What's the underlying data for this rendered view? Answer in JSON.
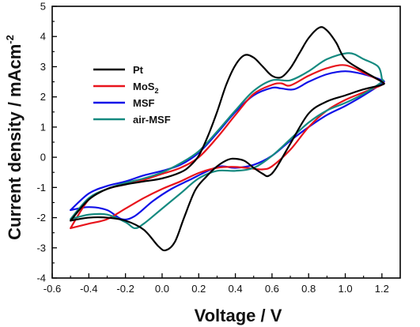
{
  "chart_data": {
    "type": "line",
    "xlabel": "Voltage / V",
    "ylabel_main": "Current density / mAcm",
    "ylabel_sup": "-2",
    "xlim": [
      -0.6,
      1.3
    ],
    "ylim": [
      -4,
      5
    ],
    "x_ticks": [
      "-0.6",
      "-0.4",
      "-0.2",
      "0.0",
      "0.2",
      "0.4",
      "0.6",
      "0.8",
      "1.0",
      "1.2"
    ],
    "y_ticks": [
      "-4",
      "-3",
      "-2",
      "-1",
      "0",
      "1",
      "2",
      "3",
      "4",
      "5"
    ],
    "grid": false,
    "legend_position": "upper-left",
    "series": [
      {
        "name": "Pt",
        "name_sub": "",
        "color": "#000000",
        "points": [
          [
            -0.5,
            -2.1
          ],
          [
            -0.4,
            -2.0
          ],
          [
            -0.3,
            -2.0
          ],
          [
            -0.2,
            -2.1
          ],
          [
            -0.1,
            -2.4
          ],
          [
            -0.02,
            -2.95
          ],
          [
            0.02,
            -3.08
          ],
          [
            0.07,
            -2.8
          ],
          [
            0.12,
            -2.0
          ],
          [
            0.18,
            -1.1
          ],
          [
            0.24,
            -0.65
          ],
          [
            0.3,
            -0.3
          ],
          [
            0.36,
            -0.08
          ],
          [
            0.4,
            -0.05
          ],
          [
            0.45,
            -0.12
          ],
          [
            0.5,
            -0.35
          ],
          [
            0.55,
            -0.55
          ],
          [
            0.58,
            -0.62
          ],
          [
            0.62,
            -0.38
          ],
          [
            0.7,
            0.45
          ],
          [
            0.8,
            1.45
          ],
          [
            0.9,
            1.85
          ],
          [
            1.0,
            2.05
          ],
          [
            1.1,
            2.25
          ],
          [
            1.2,
            2.4
          ],
          [
            1.2,
            2.5
          ],
          [
            1.1,
            2.85
          ],
          [
            1.0,
            3.25
          ],
          [
            0.95,
            3.8
          ],
          [
            0.9,
            4.2
          ],
          [
            0.86,
            4.3
          ],
          [
            0.8,
            3.95
          ],
          [
            0.75,
            3.45
          ],
          [
            0.7,
            2.95
          ],
          [
            0.65,
            2.65
          ],
          [
            0.6,
            2.7
          ],
          [
            0.55,
            3.0
          ],
          [
            0.5,
            3.3
          ],
          [
            0.45,
            3.38
          ],
          [
            0.4,
            3.05
          ],
          [
            0.35,
            2.4
          ],
          [
            0.3,
            1.5
          ],
          [
            0.25,
            0.7
          ],
          [
            0.2,
            0.05
          ],
          [
            0.15,
            -0.3
          ],
          [
            0.1,
            -0.5
          ],
          [
            0.0,
            -0.7
          ],
          [
            -0.1,
            -0.8
          ],
          [
            -0.2,
            -0.9
          ],
          [
            -0.3,
            -1.05
          ],
          [
            -0.4,
            -1.4
          ],
          [
            -0.5,
            -2.1
          ]
        ]
      },
      {
        "name": "MoS",
        "name_sub": "2",
        "color": "#e8141c",
        "points": [
          [
            -0.5,
            -2.35
          ],
          [
            -0.4,
            -2.2
          ],
          [
            -0.3,
            -2.05
          ],
          [
            -0.2,
            -1.7
          ],
          [
            -0.1,
            -1.35
          ],
          [
            0.0,
            -1.05
          ],
          [
            0.1,
            -0.8
          ],
          [
            0.2,
            -0.52
          ],
          [
            0.3,
            -0.35
          ],
          [
            0.4,
            -0.32
          ],
          [
            0.5,
            -0.38
          ],
          [
            0.55,
            -0.4
          ],
          [
            0.6,
            -0.3
          ],
          [
            0.7,
            0.25
          ],
          [
            0.8,
            1.0
          ],
          [
            0.9,
            1.55
          ],
          [
            1.0,
            1.9
          ],
          [
            1.1,
            2.15
          ],
          [
            1.2,
            2.4
          ],
          [
            1.2,
            2.5
          ],
          [
            1.1,
            2.8
          ],
          [
            1.0,
            3.05
          ],
          [
            0.9,
            2.95
          ],
          [
            0.8,
            2.7
          ],
          [
            0.7,
            2.38
          ],
          [
            0.65,
            2.45
          ],
          [
            0.6,
            2.4
          ],
          [
            0.5,
            2.1
          ],
          [
            0.4,
            1.4
          ],
          [
            0.3,
            0.65
          ],
          [
            0.2,
            0.0
          ],
          [
            0.1,
            -0.35
          ],
          [
            0.0,
            -0.55
          ],
          [
            -0.1,
            -0.75
          ],
          [
            -0.2,
            -0.9
          ],
          [
            -0.3,
            -1.05
          ],
          [
            -0.4,
            -1.4
          ],
          [
            -0.5,
            -2.35
          ]
        ]
      },
      {
        "name": "MSF",
        "name_sub": "",
        "color": "#1010e8",
        "points": [
          [
            -0.5,
            -1.75
          ],
          [
            -0.4,
            -1.65
          ],
          [
            -0.3,
            -1.75
          ],
          [
            -0.22,
            -2.05
          ],
          [
            -0.15,
            -1.95
          ],
          [
            -0.05,
            -1.45
          ],
          [
            0.05,
            -1.05
          ],
          [
            0.15,
            -0.75
          ],
          [
            0.25,
            -0.45
          ],
          [
            0.32,
            -0.3
          ],
          [
            0.4,
            -0.35
          ],
          [
            0.5,
            -0.25
          ],
          [
            0.6,
            0.05
          ],
          [
            0.7,
            0.55
          ],
          [
            0.8,
            1.0
          ],
          [
            0.9,
            1.4
          ],
          [
            1.0,
            1.7
          ],
          [
            1.1,
            2.05
          ],
          [
            1.2,
            2.45
          ],
          [
            1.2,
            2.55
          ],
          [
            1.1,
            2.75
          ],
          [
            1.0,
            2.85
          ],
          [
            0.9,
            2.75
          ],
          [
            0.8,
            2.5
          ],
          [
            0.72,
            2.25
          ],
          [
            0.65,
            2.28
          ],
          [
            0.6,
            2.3
          ],
          [
            0.5,
            2.05
          ],
          [
            0.4,
            1.5
          ],
          [
            0.3,
            0.8
          ],
          [
            0.2,
            0.15
          ],
          [
            0.1,
            -0.25
          ],
          [
            0.0,
            -0.45
          ],
          [
            -0.1,
            -0.6
          ],
          [
            -0.2,
            -0.8
          ],
          [
            -0.3,
            -0.95
          ],
          [
            -0.4,
            -1.2
          ],
          [
            -0.5,
            -1.75
          ]
        ]
      },
      {
        "name": "air-MSF",
        "name_sub": "",
        "color": "#158a80",
        "points": [
          [
            -0.5,
            -2.05
          ],
          [
            -0.4,
            -1.9
          ],
          [
            -0.3,
            -1.9
          ],
          [
            -0.2,
            -2.15
          ],
          [
            -0.15,
            -2.35
          ],
          [
            -0.1,
            -2.2
          ],
          [
            0.0,
            -1.7
          ],
          [
            0.1,
            -1.2
          ],
          [
            0.2,
            -0.7
          ],
          [
            0.3,
            -0.45
          ],
          [
            0.4,
            -0.45
          ],
          [
            0.5,
            -0.35
          ],
          [
            0.6,
            0.05
          ],
          [
            0.7,
            0.6
          ],
          [
            0.8,
            1.15
          ],
          [
            0.9,
            1.55
          ],
          [
            1.0,
            1.8
          ],
          [
            1.1,
            2.1
          ],
          [
            1.2,
            2.5
          ],
          [
            1.2,
            2.6
          ],
          [
            1.18,
            3.0
          ],
          [
            1.1,
            3.25
          ],
          [
            1.02,
            3.45
          ],
          [
            0.9,
            3.25
          ],
          [
            0.8,
            2.85
          ],
          [
            0.7,
            2.55
          ],
          [
            0.6,
            2.55
          ],
          [
            0.5,
            2.2
          ],
          [
            0.4,
            1.55
          ],
          [
            0.3,
            0.85
          ],
          [
            0.2,
            0.2
          ],
          [
            0.1,
            -0.2
          ],
          [
            0.0,
            -0.5
          ],
          [
            -0.1,
            -0.7
          ],
          [
            -0.2,
            -0.85
          ],
          [
            -0.3,
            -1.05
          ],
          [
            -0.4,
            -1.35
          ],
          [
            -0.5,
            -2.05
          ]
        ]
      }
    ]
  }
}
